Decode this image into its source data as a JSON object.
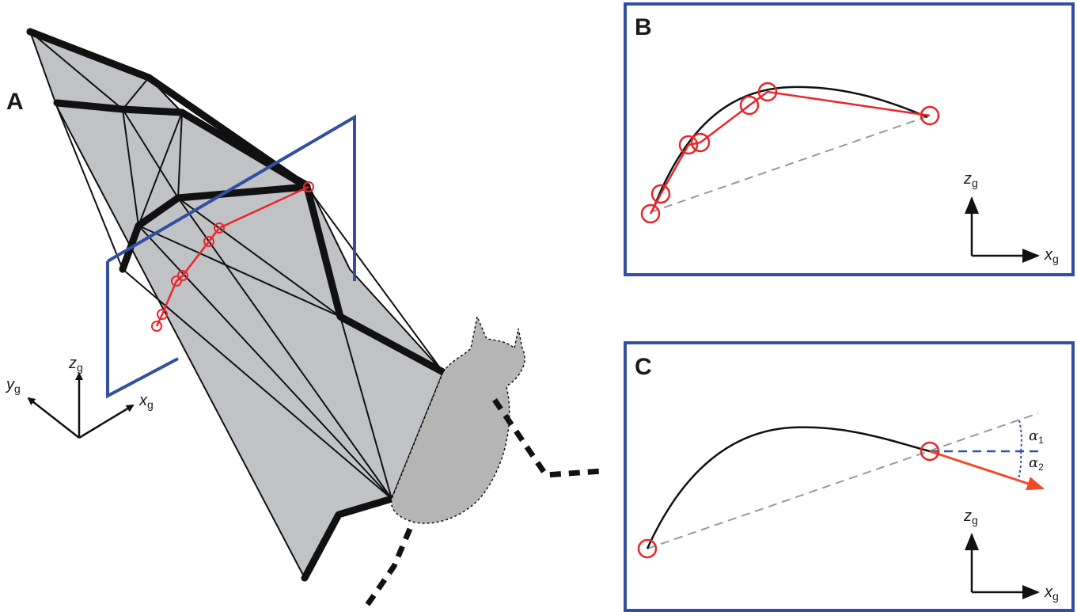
{
  "panels": {
    "a": {
      "label": "A"
    },
    "b": {
      "label": "B"
    },
    "c": {
      "label": "C"
    }
  },
  "axes": {
    "x_main": "x",
    "z_main": "z",
    "y_main": "y",
    "subscript": "g"
  },
  "angles": {
    "alpha_symbol": "α",
    "alpha1_sub": "1",
    "alpha2_sub": "2"
  },
  "colors": {
    "membrane": "#c0c2c5",
    "body": "#b5b5b5",
    "bones": "#111111",
    "markers": "#e8262b",
    "plane_frame": "#3350a0",
    "chord": "#999999",
    "arrow": "#ee4b26"
  }
}
